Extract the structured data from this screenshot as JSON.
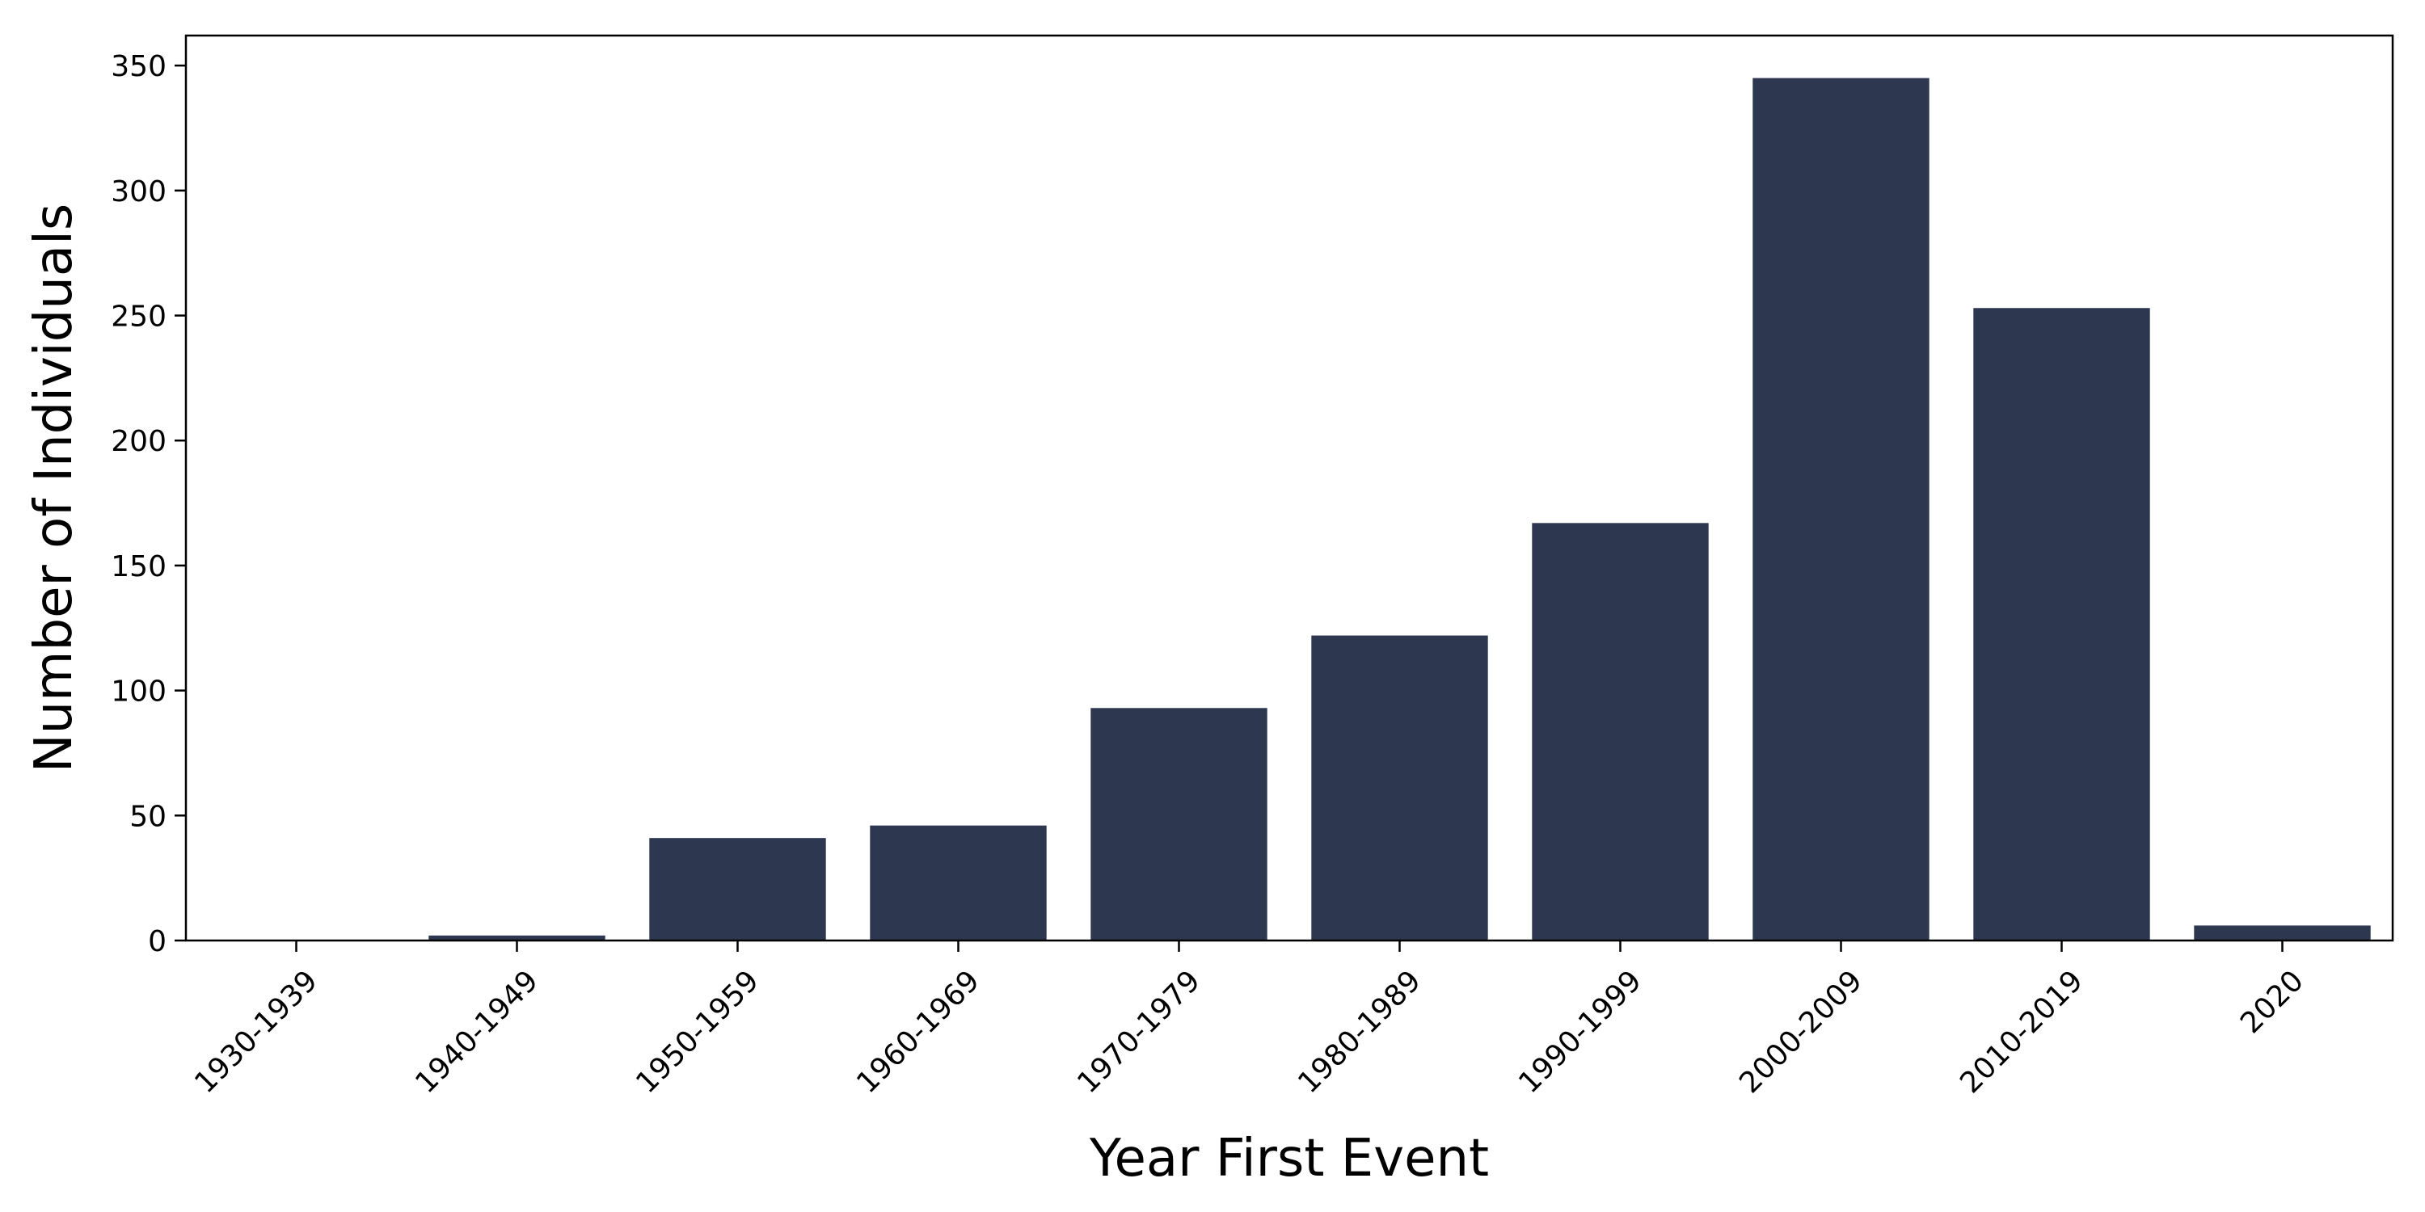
{
  "chart_data": {
    "type": "bar",
    "title": "",
    "xlabel": "Year First Event",
    "ylabel": "Number of Individuals",
    "categories": [
      "1930-1939",
      "1940-1949",
      "1950-1959",
      "1960-1969",
      "1970-1979",
      "1980-1989",
      "1990-1999",
      "2000-2009",
      "2010-2019",
      "2020"
    ],
    "values": [
      0,
      2,
      41,
      46,
      93,
      122,
      167,
      345,
      253,
      6
    ],
    "ylim": [
      0,
      362
    ],
    "yticks": [
      0,
      50,
      100,
      150,
      200,
      250,
      300,
      350
    ],
    "grid": false,
    "legend": "none",
    "bar_color": "#2d3850"
  }
}
